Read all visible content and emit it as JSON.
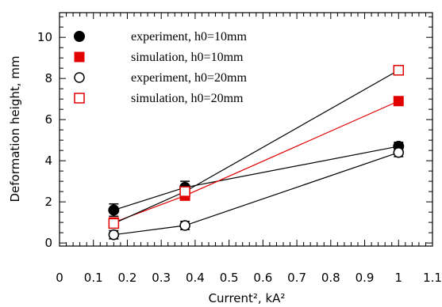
{
  "chart_data": {
    "type": "scatter",
    "xlabel": "Current², kA²",
    "ylabel": "Deformation height, mm",
    "xlim": [
      0,
      1.1
    ],
    "ylim": [
      -0.15,
      11.2
    ],
    "x_ticks": [
      "0",
      "0.1",
      "0.2",
      "0.3",
      "0.4",
      "0.5",
      "0.6",
      "0.7",
      "0.8",
      "0.9",
      "1",
      "1.1"
    ],
    "y_ticks": [
      "0",
      "2",
      "4",
      "6",
      "8",
      "10"
    ],
    "legend_position": "top-left",
    "series": [
      {
        "name": "experiment, h0=10mm",
        "marker": "filled-circle",
        "color": "#000000",
        "line_color": "#000000",
        "x": [
          0.16,
          0.37,
          1.0
        ],
        "y": [
          1.6,
          2.7,
          4.7
        ],
        "y_err": [
          0.3,
          0.3,
          0.2
        ]
      },
      {
        "name": "simulation, h0=10mm",
        "marker": "filled-square",
        "color": "#e00000",
        "line_color": "#e00000",
        "x": [
          0.16,
          0.37,
          1.0
        ],
        "y": [
          1.0,
          2.3,
          6.9
        ],
        "y_err": [
          0,
          0,
          0
        ]
      },
      {
        "name": "experiment, h0=20mm",
        "marker": "open-circle",
        "color": "#000000",
        "line_color": "#000000",
        "x": [
          0.16,
          0.37,
          1.0
        ],
        "y": [
          0.4,
          0.85,
          4.4
        ],
        "y_err": [
          0.2,
          0.2,
          0.2
        ]
      },
      {
        "name": "simulation, h0=20mm",
        "marker": "open-square",
        "color": "#e00000",
        "line_color": "#000000",
        "x": [
          0.16,
          0.37,
          1.0
        ],
        "y": [
          0.95,
          2.5,
          8.4
        ],
        "y_err": [
          0,
          0,
          0
        ]
      }
    ]
  }
}
